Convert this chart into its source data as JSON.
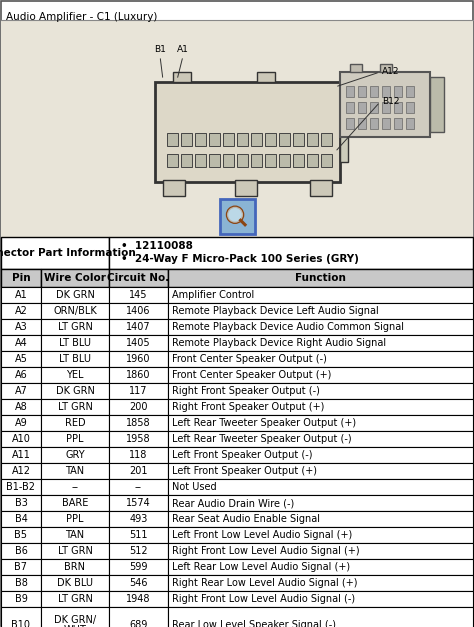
{
  "title": "Audio Amplifier - C1 (Luxury)",
  "connector_label": "Connector Part Information",
  "connector_info": [
    "12110088",
    "24-Way F Micro-Pack 100 Series (GRY)"
  ],
  "headers": [
    "Pin",
    "Wire Color",
    "Circuit No.",
    "Function"
  ],
  "rows": [
    [
      "A1",
      "DK GRN",
      "145",
      "Amplifier Control"
    ],
    [
      "A2",
      "ORN/BLK",
      "1406",
      "Remote Playback Device Left Audio Signal"
    ],
    [
      "A3",
      "LT GRN",
      "1407",
      "Remote Playback Device Audio Common Signal"
    ],
    [
      "A4",
      "LT BLU",
      "1405",
      "Remote Playback Device Right Audio Signal"
    ],
    [
      "A5",
      "LT BLU",
      "1960",
      "Front Center Speaker Output (-)"
    ],
    [
      "A6",
      "YEL",
      "1860",
      "Front Center Speaker Output (+)"
    ],
    [
      "A7",
      "DK GRN",
      "117",
      "Right Front Speaker Output (-)"
    ],
    [
      "A8",
      "LT GRN",
      "200",
      "Right Front Speaker Output (+)"
    ],
    [
      "A9",
      "RED",
      "1858",
      "Left Rear Tweeter Speaker Output (+)"
    ],
    [
      "A10",
      "PPL",
      "1958",
      "Left Rear Tweeter Speaker Output (-)"
    ],
    [
      "A11",
      "GRY",
      "118",
      "Left Front Speaker Output (-)"
    ],
    [
      "A12",
      "TAN",
      "201",
      "Left Front Speaker Output (+)"
    ],
    [
      "B1-B2",
      "--",
      "--",
      "Not Used"
    ],
    [
      "B3",
      "BARE",
      "1574",
      "Rear Audio Drain Wire (-)"
    ],
    [
      "B4",
      "PPL",
      "493",
      "Rear Seat Audio Enable Signal"
    ],
    [
      "B5",
      "TAN",
      "511",
      "Left Front Low Level Audio Signal (+)"
    ],
    [
      "B6",
      "LT GRN",
      "512",
      "Right Front Low Level Audio Signal (+)"
    ],
    [
      "B7",
      "BRN",
      "599",
      "Left Rear Low Level Audio Signal (+)"
    ],
    [
      "B8",
      "DK BLU",
      "546",
      "Right Rear Low Level Audio Signal (+)"
    ],
    [
      "B9",
      "LT GRN",
      "1948",
      "Right Front Low Level Audio Signal (-)"
    ],
    [
      "B10",
      "DK GRN/\nWHT",
      "689",
      "Rear Low Level Speaker Signal (-)"
    ]
  ],
  "bg_color": "#ffffff",
  "header_bg": "#c8c8c8",
  "border_color": "#000000",
  "text_color": "#000000",
  "title_color": "#000000",
  "diagram_bg": "#e8e4d8",
  "icon_border": "#4466bb",
  "icon_bg": "#8ab4d4"
}
